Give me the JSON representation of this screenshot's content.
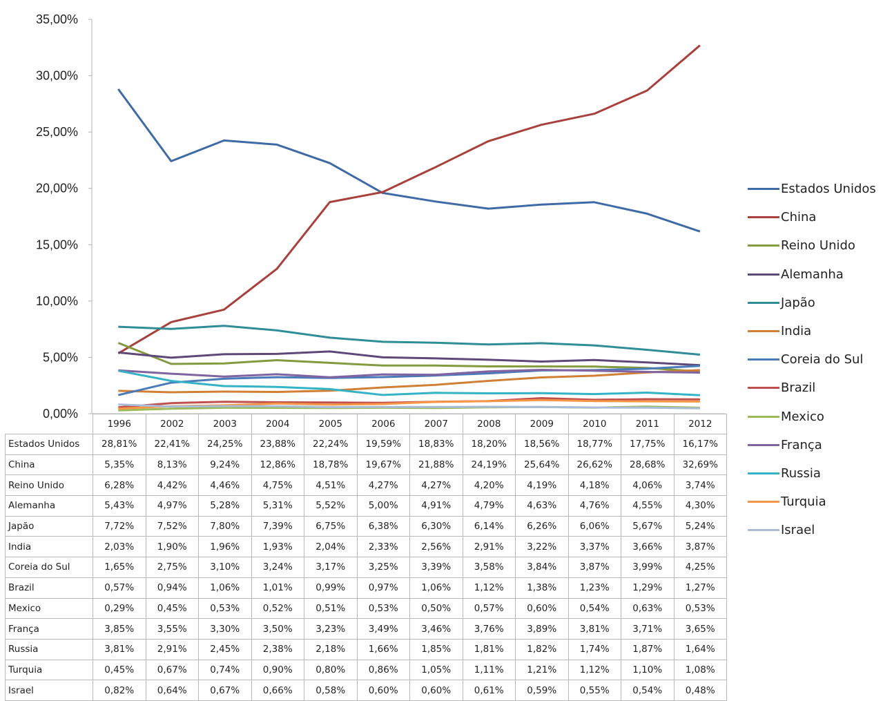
{
  "chart_data": {
    "type": "line",
    "categories": [
      "1996",
      "2002",
      "2003",
      "2004",
      "2005",
      "2006",
      "2007",
      "2008",
      "2009",
      "2010",
      "2011",
      "2012"
    ],
    "ylim": [
      0,
      35
    ],
    "yticks": [
      "0,00%",
      "5,00%",
      "10,00%",
      "15,00%",
      "20,00%",
      "25,00%",
      "30,00%",
      "35,00%"
    ],
    "ytick_values": [
      0,
      5,
      10,
      15,
      20,
      25,
      30,
      35
    ],
    "grid": false,
    "legend_position": "right",
    "series": [
      {
        "name": "Estados Unidos",
        "color": "#3e6aa5",
        "labels": [
          "28,81%",
          "22,41%",
          "24,25%",
          "23,88%",
          "22,24%",
          "19,59%",
          "18,83%",
          "18,20%",
          "18,56%",
          "18,77%",
          "17,75%",
          "16,17%"
        ],
        "values": [
          28.81,
          22.41,
          24.25,
          23.88,
          22.24,
          19.59,
          18.83,
          18.2,
          18.56,
          18.77,
          17.75,
          16.17
        ]
      },
      {
        "name": "China",
        "color": "#a8403b",
        "labels": [
          "5,35%",
          "8,13%",
          "9,24%",
          "12,86%",
          "18,78%",
          "19,67%",
          "21,88%",
          "24,19%",
          "25,64%",
          "26,62%",
          "28,68%",
          "32,69%"
        ],
        "values": [
          5.35,
          8.13,
          9.24,
          12.86,
          18.78,
          19.67,
          21.88,
          24.19,
          25.64,
          26.62,
          28.68,
          32.69
        ]
      },
      {
        "name": "Reino Unido",
        "color": "#839a3e",
        "labels": [
          "6,28%",
          "4,42%",
          "4,46%",
          "4,75%",
          "4,51%",
          "4,27%",
          "4,27%",
          "4,20%",
          "4,19%",
          "4,18%",
          "4,06%",
          "3,74%"
        ],
        "values": [
          6.28,
          4.42,
          4.46,
          4.75,
          4.51,
          4.27,
          4.27,
          4.2,
          4.19,
          4.18,
          4.06,
          3.74
        ]
      },
      {
        "name": "Alemanha",
        "color": "#5d4879",
        "labels": [
          "5,43%",
          "4,97%",
          "5,28%",
          "5,31%",
          "5,52%",
          "5,00%",
          "4,91%",
          "4,79%",
          "4,63%",
          "4,76%",
          "4,55%",
          "4,30%"
        ],
        "values": [
          5.43,
          4.97,
          5.28,
          5.31,
          5.52,
          5.0,
          4.91,
          4.79,
          4.63,
          4.76,
          4.55,
          4.3
        ]
      },
      {
        "name": "Japão",
        "color": "#2f8d98",
        "labels": [
          "7,72%",
          "7,52%",
          "7,80%",
          "7,39%",
          "6,75%",
          "6,38%",
          "6,30%",
          "6,14%",
          "6,26%",
          "6,06%",
          "5,67%",
          "5,24%"
        ],
        "values": [
          7.72,
          7.52,
          7.8,
          7.39,
          6.75,
          6.38,
          6.3,
          6.14,
          6.26,
          6.06,
          5.67,
          5.24
        ]
      },
      {
        "name": "India",
        "color": "#d07f34",
        "labels": [
          "2,03%",
          "1,90%",
          "1,96%",
          "1,93%",
          "2,04%",
          "2,33%",
          "2,56%",
          "2,91%",
          "3,22%",
          "3,37%",
          "3,66%",
          "3,87%"
        ],
        "values": [
          2.03,
          1.9,
          1.96,
          1.93,
          2.04,
          2.33,
          2.56,
          2.91,
          3.22,
          3.37,
          3.66,
          3.87
        ]
      },
      {
        "name": "Coreia do Sul",
        "color": "#4a7ab8",
        "labels": [
          "1,65%",
          "2,75%",
          "3,10%",
          "3,24%",
          "3,17%",
          "3,25%",
          "3,39%",
          "3,58%",
          "3,84%",
          "3,87%",
          "3,99%",
          "4,25%"
        ],
        "values": [
          1.65,
          2.75,
          3.1,
          3.24,
          3.17,
          3.25,
          3.39,
          3.58,
          3.84,
          3.87,
          3.99,
          4.25
        ]
      },
      {
        "name": "Brazil",
        "color": "#c0504d",
        "labels": [
          "0,57%",
          "0,94%",
          "1,06%",
          "1,01%",
          "0,99%",
          "0,97%",
          "1,06%",
          "1,12%",
          "1,38%",
          "1,23%",
          "1,29%",
          "1,27%"
        ],
        "values": [
          0.57,
          0.94,
          1.06,
          1.01,
          0.99,
          0.97,
          1.06,
          1.12,
          1.38,
          1.23,
          1.29,
          1.27
        ]
      },
      {
        "name": "Mexico",
        "color": "#9bbb59",
        "labels": [
          "0,29%",
          "0,45%",
          "0,53%",
          "0,52%",
          "0,51%",
          "0,53%",
          "0,50%",
          "0,57%",
          "0,60%",
          "0,54%",
          "0,63%",
          "0,53%"
        ],
        "values": [
          0.29,
          0.45,
          0.53,
          0.52,
          0.51,
          0.53,
          0.5,
          0.57,
          0.6,
          0.54,
          0.63,
          0.53
        ]
      },
      {
        "name": "França",
        "color": "#8064a2",
        "labels": [
          "3,85%",
          "3,55%",
          "3,30%",
          "3,50%",
          "3,23%",
          "3,49%",
          "3,46%",
          "3,76%",
          "3,89%",
          "3,81%",
          "3,71%",
          "3,65%"
        ],
        "values": [
          3.85,
          3.55,
          3.3,
          3.5,
          3.23,
          3.49,
          3.46,
          3.76,
          3.89,
          3.81,
          3.71,
          3.65
        ]
      },
      {
        "name": "Russia",
        "color": "#35b3c6",
        "labels": [
          "3,81%",
          "2,91%",
          "2,45%",
          "2,38%",
          "2,18%",
          "1,66%",
          "1,85%",
          "1,81%",
          "1,82%",
          "1,74%",
          "1,87%",
          "1,64%"
        ],
        "values": [
          3.81,
          2.91,
          2.45,
          2.38,
          2.18,
          1.66,
          1.85,
          1.81,
          1.82,
          1.74,
          1.87,
          1.64
        ]
      },
      {
        "name": "Turquia",
        "color": "#f79646",
        "labels": [
          "0,45%",
          "0,67%",
          "0,74%",
          "0,90%",
          "0,80%",
          "0,86%",
          "1,05%",
          "1,11%",
          "1,21%",
          "1,12%",
          "1,10%",
          "1,08%"
        ],
        "values": [
          0.45,
          0.67,
          0.74,
          0.9,
          0.8,
          0.86,
          1.05,
          1.11,
          1.21,
          1.12,
          1.1,
          1.08
        ]
      },
      {
        "name": "Israel",
        "color": "#a9bcd8",
        "labels": [
          "0,82%",
          "0,64%",
          "0,67%",
          "0,66%",
          "0,58%",
          "0,60%",
          "0,60%",
          "0,61%",
          "0,59%",
          "0,55%",
          "0,54%",
          "0,48%"
        ],
        "values": [
          0.82,
          0.64,
          0.67,
          0.66,
          0.58,
          0.6,
          0.6,
          0.61,
          0.59,
          0.55,
          0.54,
          0.48
        ]
      }
    ]
  }
}
